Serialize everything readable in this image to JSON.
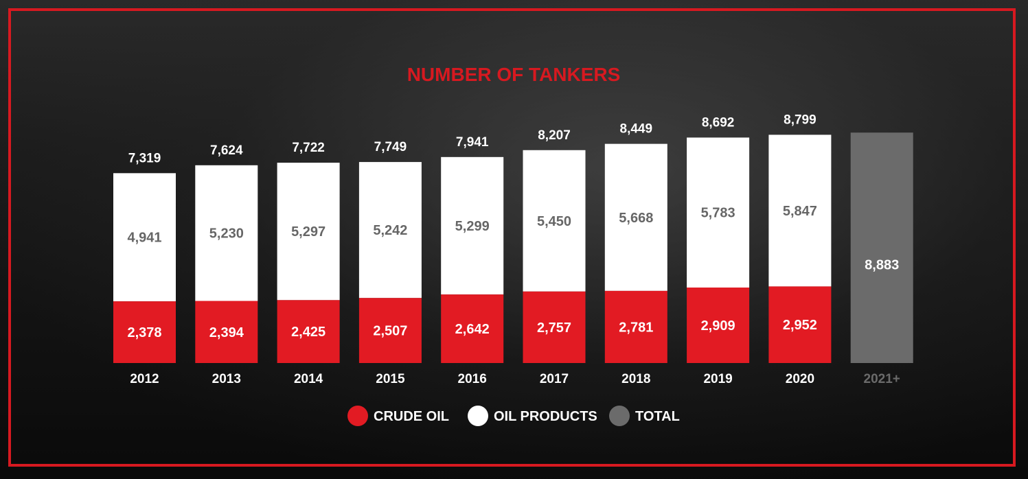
{
  "chart_data": {
    "type": "bar",
    "stacked": true,
    "title": "NUMBER OF TANKERS",
    "categories": [
      "2012",
      "2013",
      "2014",
      "2015",
      "2016",
      "2017",
      "2018",
      "2019",
      "2020",
      "2021+"
    ],
    "series": [
      {
        "name": "CRUDE OIL",
        "color": "#e21b23",
        "values": [
          2378,
          2394,
          2425,
          2507,
          2642,
          2757,
          2781,
          2909,
          2952,
          null
        ],
        "labels": [
          "2,378",
          "2,394",
          "2,425",
          "2,507",
          "2,642",
          "2,757",
          "2,781",
          "2,909",
          "2,952",
          ""
        ]
      },
      {
        "name": "OIL PRODUCTS",
        "color": "#ffffff",
        "values": [
          4941,
          5230,
          5297,
          5242,
          5299,
          5450,
          5668,
          5783,
          5847,
          null
        ],
        "labels": [
          "4,941",
          "5,230",
          "5,297",
          "5,242",
          "5,299",
          "5,450",
          "5,668",
          "5,783",
          "5,847",
          ""
        ]
      },
      {
        "name": "TOTAL",
        "color": "#6b6b6b",
        "values": [
          null,
          null,
          null,
          null,
          null,
          null,
          null,
          null,
          null,
          8883
        ],
        "labels": [
          "",
          "",
          "",
          "",
          "",
          "",
          "",
          "",
          "",
          "8,883"
        ]
      }
    ],
    "totals": [
      7319,
      7624,
      7722,
      7749,
      7941,
      8207,
      8449,
      8692,
      8799,
      null
    ],
    "total_labels": [
      "7,319",
      "7,624",
      "7,722",
      "7,749",
      "7,941",
      "8,207",
      "8,449",
      "8,692",
      "8,799",
      ""
    ],
    "legend": {
      "position": "bottom-center",
      "entries": [
        "CRUDE OIL",
        "OIL PRODUCTS",
        "TOTAL"
      ]
    },
    "grid": false
  }
}
